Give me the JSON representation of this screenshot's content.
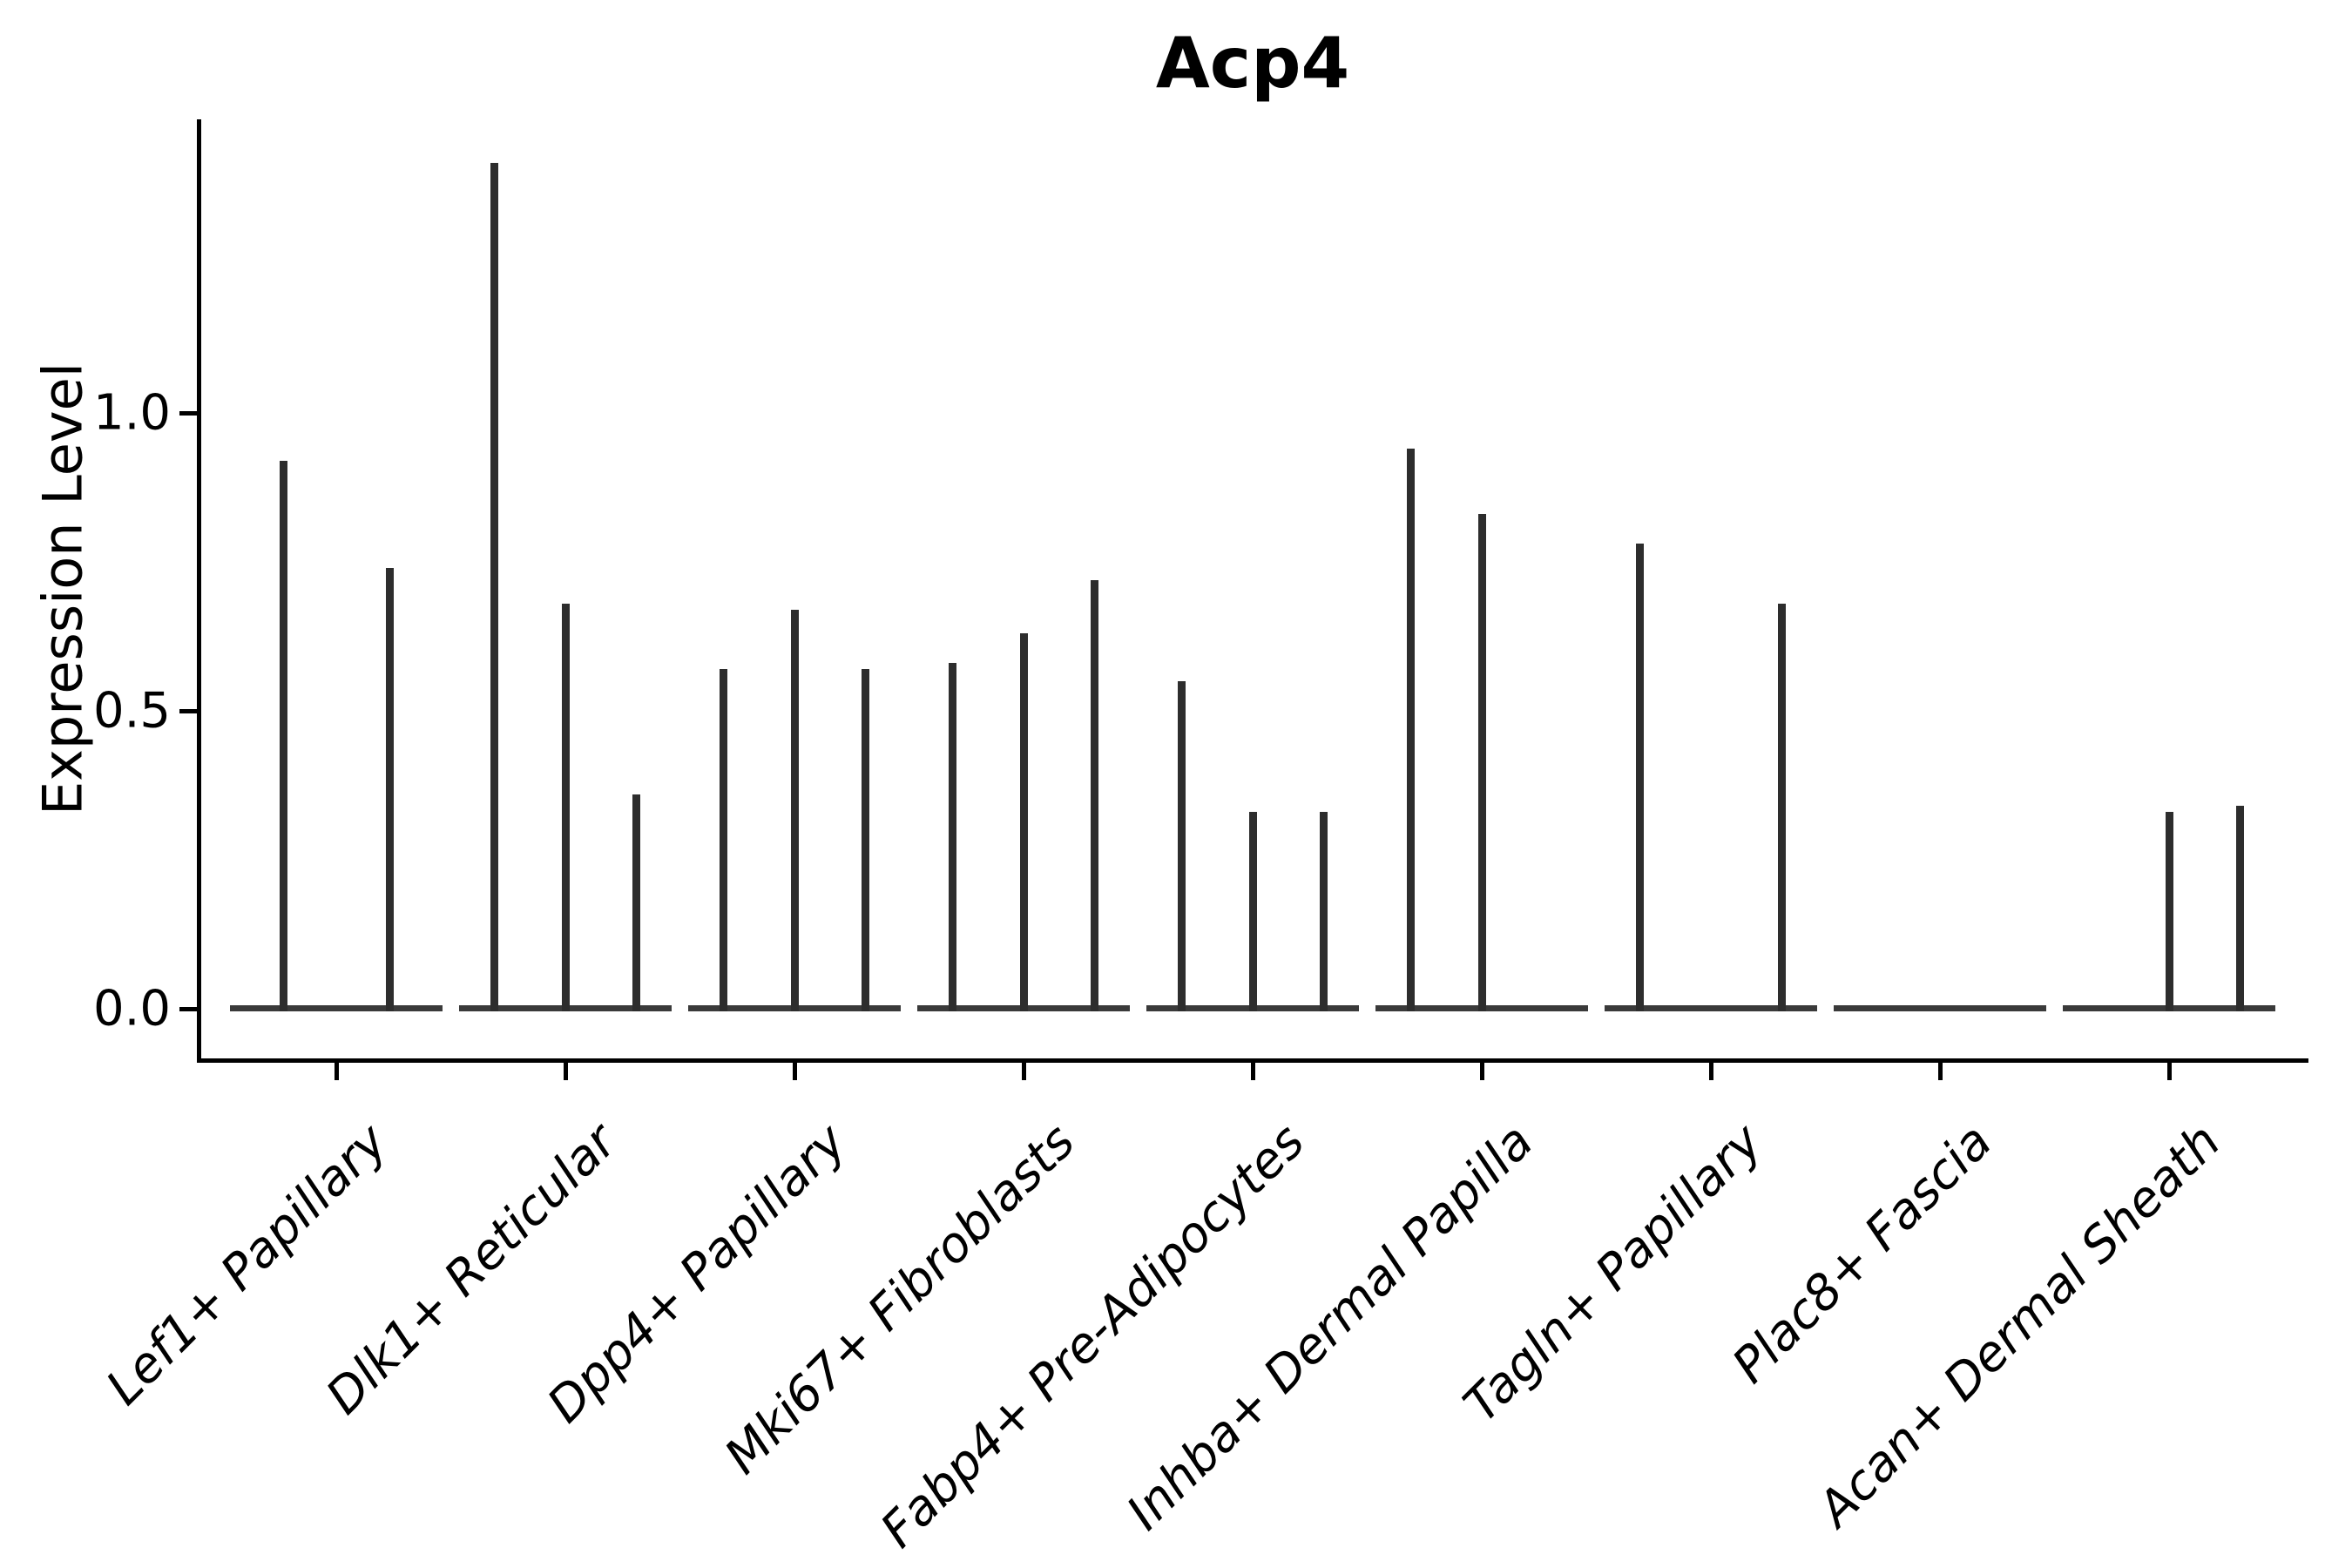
{
  "title": "Acp4",
  "axes": {
    "ylabel": "Expression Level",
    "yticklabels": [
      "0.0",
      "0.5",
      "1.0"
    ]
  },
  "colors": {
    "violin": "#2d2d2d",
    "baseline": "#3a3a3a",
    "axis": "#000000",
    "background": "#ffffff"
  },
  "chart_data": {
    "type": "violin",
    "title": "Acp4",
    "xlabel": "",
    "ylabel": "Expression Level",
    "ylim": [
      -0.08,
      1.49
    ],
    "yticks": [
      0.0,
      0.5,
      1.0
    ],
    "yticklabels": [
      "0.0",
      "0.5",
      "1.0"
    ],
    "grid": false,
    "legend": "none",
    "description": "Stacked violin plot of Acp4 expression; violins are collapsed to a flat base at 0 with a thin spike up to the maximum expression per violin. Several categories contain 2-3 sub-violins.",
    "categories": [
      "Lef1+ Papillary",
      "Dlk1+ Reticular",
      "Dpp4+ Papillary",
      "Mki67+ Fibroblasts",
      "Fabp4+ Pre-Adipocytes",
      "Inhba+ Dermal Papilla",
      "Tagln+ Papillary",
      "Plac8+ Fascia",
      "Acan+ Dermal Sheath"
    ],
    "series": [
      {
        "category": "Lef1+ Papillary",
        "violin_max_values": [
          0.92,
          0.74
        ]
      },
      {
        "category": "Dlk1+ Reticular",
        "violin_max_values": [
          1.42,
          0.68,
          0.36
        ]
      },
      {
        "category": "Dpp4+ Papillary",
        "violin_max_values": [
          0.57,
          0.67,
          0.57
        ]
      },
      {
        "category": "Mki67+ Fibroblasts",
        "violin_max_values": [
          0.58,
          0.63,
          0.72
        ]
      },
      {
        "category": "Fabp4+ Pre-Adipocytes",
        "violin_max_values": [
          0.55,
          0.33,
          0.33
        ]
      },
      {
        "category": "Inhba+ Dermal Papilla",
        "violin_max_values": [
          0.94,
          0.83,
          0.0
        ]
      },
      {
        "category": "Tagln+ Papillary",
        "violin_max_values": [
          0.78,
          0.0,
          0.68
        ]
      },
      {
        "category": "Plac8+ Fascia",
        "violin_max_values": [
          0.0,
          0.0,
          0.0
        ]
      },
      {
        "category": "Acan+ Dermal Sheath",
        "violin_max_values": [
          0.0,
          0.33,
          0.34
        ]
      }
    ]
  }
}
